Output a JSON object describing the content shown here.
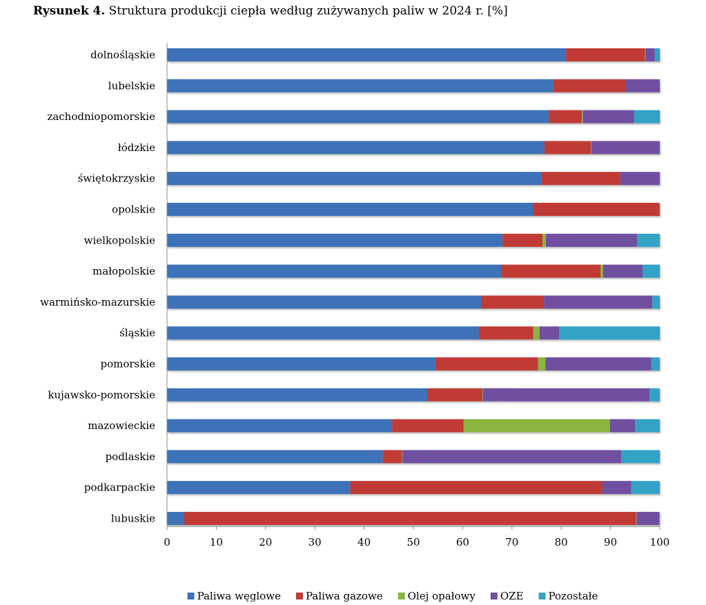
{
  "caption": {
    "label": "Rysunek 4.",
    "text": "Struktura produkcji ciepła według zużywanych paliw w 2024 r. [%]"
  },
  "chart_data": {
    "type": "bar",
    "orientation": "horizontal",
    "stacked": true,
    "xlim": [
      0,
      100
    ],
    "xticks": [
      0,
      10,
      20,
      30,
      40,
      50,
      60,
      70,
      80,
      90,
      100
    ],
    "grid": false,
    "legend_position": "bottom",
    "categories": [
      "dolnośląskie",
      "lubelskie",
      "zachodniopomorskie",
      "łódzkie",
      "świętokrzyskie",
      "opolskie",
      "wielkopolskie",
      "małopolskie",
      "warmińsko-mazurskie",
      "śląskie",
      "pomorskie",
      "kujawsko-pomorskie",
      "mazowieckie",
      "podlaskie",
      "podkarpackie",
      "lubuskie"
    ],
    "series": [
      {
        "name": "Paliwa węglowe",
        "color": "#3e72b8",
        "values": [
          81.0,
          78.4,
          77.5,
          76.6,
          76.0,
          74.3,
          68.1,
          67.8,
          63.8,
          63.3,
          54.5,
          52.8,
          45.7,
          43.8,
          37.2,
          3.5
        ]
      },
      {
        "name": "Paliwa gazowe",
        "color": "#c03a36",
        "values": [
          16.0,
          14.6,
          6.7,
          9.4,
          16.0,
          25.6,
          8.1,
          20.2,
          12.7,
          11.0,
          20.8,
          11.2,
          14.5,
          3.9,
          51.1,
          91.7
        ]
      },
      {
        "name": "Olej opałowy",
        "color": "#8bb440",
        "values": [
          0.1,
          0.0,
          0.2,
          0.1,
          0.0,
          0.0,
          0.7,
          0.5,
          0.0,
          1.3,
          1.5,
          0.1,
          29.7,
          0.1,
          0.0,
          0.1
        ]
      },
      {
        "name": "OZE",
        "color": "#7150a0",
        "values": [
          1.9,
          7.0,
          10.4,
          13.9,
          8.0,
          0.1,
          18.5,
          8.0,
          22.0,
          4.0,
          21.5,
          33.8,
          5.1,
          44.4,
          5.9,
          4.6
        ]
      },
      {
        "name": "Pozostałe",
        "color": "#33a3c4",
        "values": [
          1.0,
          0.0,
          5.2,
          0.0,
          0.0,
          0.0,
          4.6,
          3.5,
          1.5,
          20.4,
          1.7,
          2.1,
          5.0,
          7.8,
          5.8,
          0.1
        ]
      }
    ]
  }
}
